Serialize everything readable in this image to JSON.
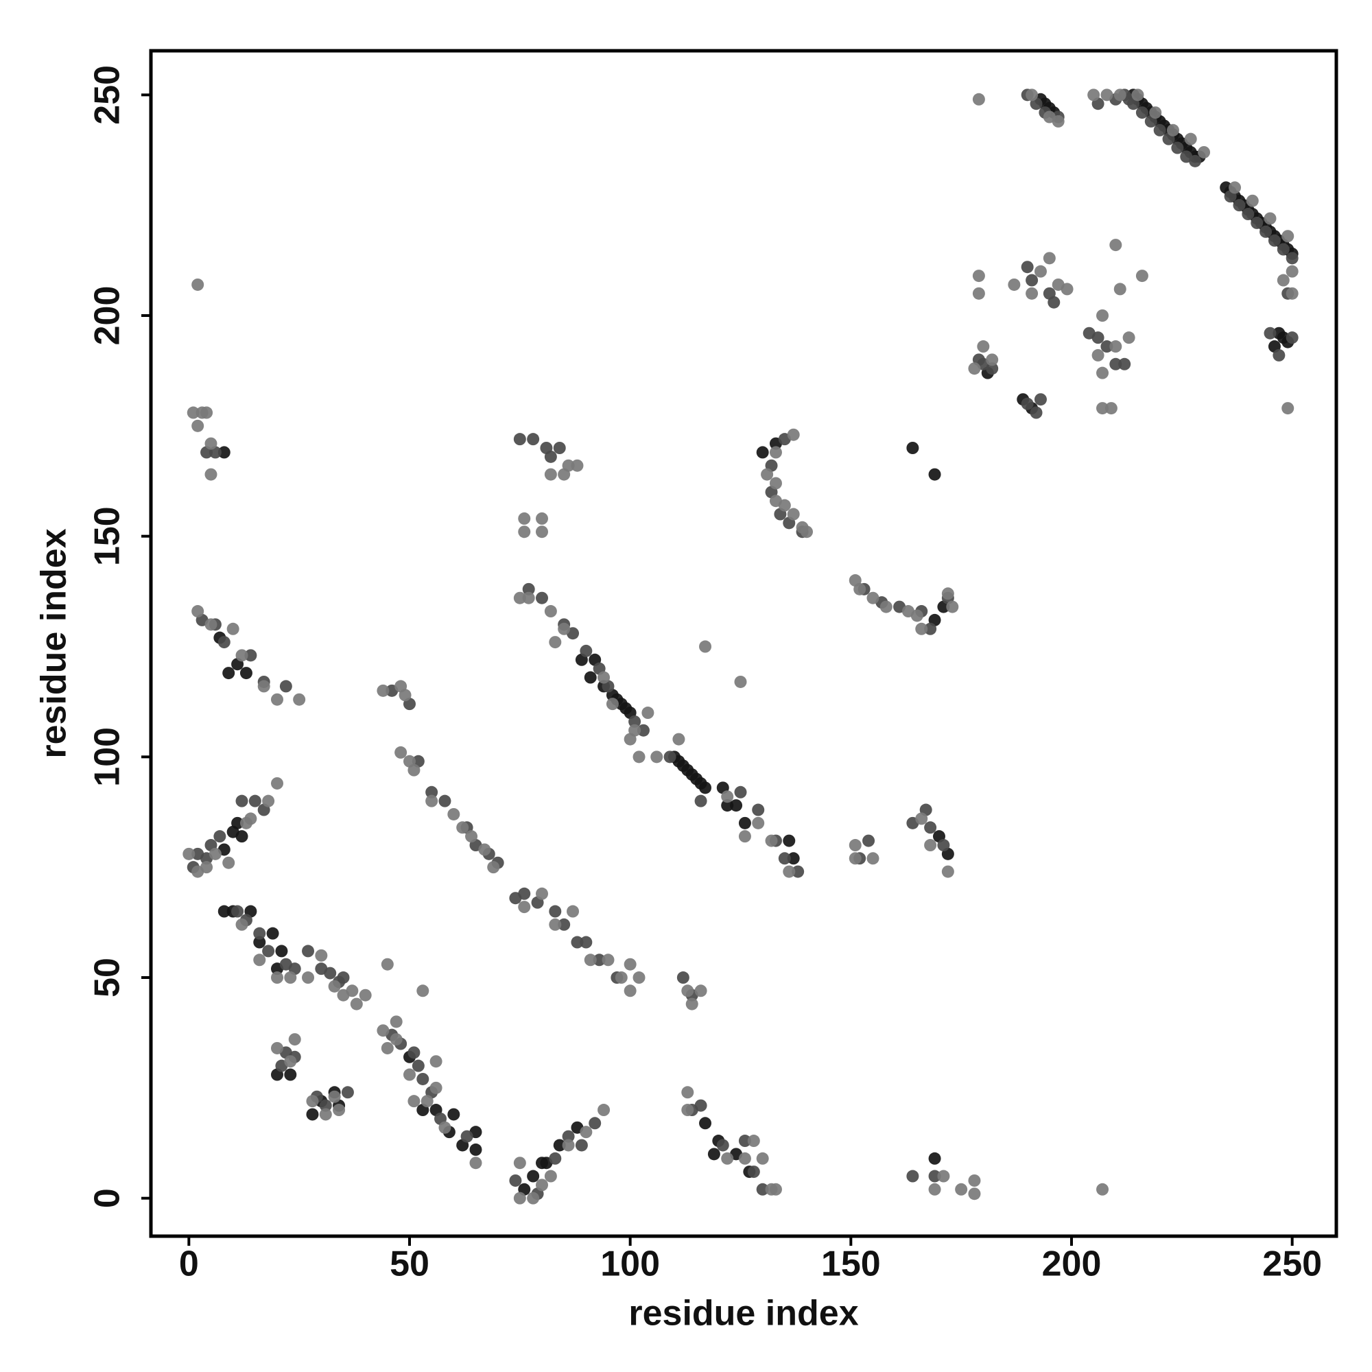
{
  "chart_data": {
    "type": "scatter",
    "x_label": "residue index",
    "y_label": "residue index",
    "xlim": [
      -8.6,
      260
    ],
    "ylim": [
      -8.6,
      260
    ],
    "xticks": [
      0,
      50,
      100,
      150,
      200,
      250
    ],
    "yticks": [
      0,
      50,
      100,
      150,
      200,
      250
    ],
    "grid": false,
    "series": [
      {
        "color": "#151515",
        "x": [
          214,
          215,
          216,
          217,
          218,
          219,
          220,
          221,
          222,
          223,
          224,
          225,
          226,
          227,
          228,
          229,
          235,
          236,
          237,
          238,
          239,
          240,
          241,
          242,
          243,
          244,
          245,
          246,
          247,
          248,
          249,
          250,
          193,
          194,
          195,
          196,
          181,
          189,
          191,
          247,
          248,
          249,
          246,
          8,
          164,
          169,
          9,
          11,
          13,
          7,
          92,
          89,
          91,
          94,
          96,
          97,
          98,
          99,
          100,
          110,
          111,
          112,
          113,
          114,
          115,
          116,
          117,
          121,
          122,
          124,
          126,
          136,
          137,
          172,
          170,
          171,
          169,
          133,
          130,
          10,
          11,
          8,
          12,
          8,
          10,
          14,
          21,
          19,
          20,
          16,
          28,
          30,
          33,
          34,
          53,
          56,
          60,
          59,
          65,
          65,
          62,
          78,
          80,
          84,
          81,
          88,
          76,
          117,
          120,
          119,
          124,
          127,
          169,
          50,
          20,
          23
        ],
        "values": [
          250,
          249,
          248,
          247,
          246,
          245,
          244,
          243,
          242,
          241,
          240,
          239,
          238,
          237,
          236,
          236,
          229,
          228,
          227,
          226,
          225,
          224,
          223,
          222,
          221,
          220,
          219,
          218,
          217,
          216,
          215,
          214,
          249,
          248,
          247,
          246,
          187,
          181,
          179,
          196,
          195,
          194,
          193,
          169,
          170,
          164,
          119,
          121,
          119,
          127,
          122,
          122,
          118,
          116,
          114,
          113,
          112,
          111,
          110,
          100,
          99,
          98,
          97,
          96,
          95,
          94,
          93,
          93,
          89,
          89,
          85,
          81,
          77,
          78,
          82,
          134,
          131,
          171,
          169,
          83,
          85,
          79,
          82,
          65,
          65,
          65,
          56,
          60,
          52,
          58,
          19,
          22,
          24,
          21,
          20,
          20,
          19,
          15,
          15,
          11,
          12,
          5,
          8,
          12,
          8,
          16,
          2,
          17,
          13,
          10,
          10,
          6,
          9,
          32,
          28,
          28
        ]
      },
      {
        "color": "#4a4a4a",
        "x": [
          212,
          213,
          214,
          216,
          218,
          220,
          222,
          224,
          226,
          228,
          236,
          238,
          240,
          242,
          244,
          246,
          248,
          250,
          190,
          192,
          194,
          197,
          206,
          210,
          179,
          180,
          182,
          190,
          192,
          193,
          190,
          191,
          195,
          196,
          204,
          206,
          208,
          210,
          212,
          245,
          247,
          250,
          249,
          4,
          6,
          3,
          6,
          8,
          14,
          17,
          22,
          75,
          78,
          81,
          82,
          84,
          77,
          80,
          85,
          87,
          90,
          93,
          95,
          101,
          103,
          109,
          116,
          125,
          129,
          133,
          138,
          135,
          132,
          134,
          136,
          139,
          135,
          132,
          153,
          157,
          161,
          166,
          168,
          172,
          164,
          167,
          168,
          171,
          46,
          50,
          52,
          55,
          58,
          63,
          65,
          68,
          70,
          1,
          2,
          4,
          5,
          7,
          12,
          15,
          17,
          11,
          13,
          16,
          18,
          22,
          24,
          27,
          30,
          32,
          34,
          35,
          22,
          24,
          21,
          29,
          31,
          36,
          46,
          48,
          51,
          52,
          53,
          55,
          57,
          63,
          74,
          76,
          79,
          83,
          85,
          88,
          90,
          93,
          97,
          112,
          114,
          74,
          79,
          83,
          86,
          89,
          92,
          114,
          116,
          121,
          126,
          128,
          130,
          169,
          164,
          152,
          154
        ],
        "values": [
          250,
          249,
          248,
          246,
          244,
          242,
          240,
          238,
          236,
          235,
          227,
          225,
          223,
          221,
          219,
          217,
          215,
          213,
          250,
          248,
          246,
          245,
          248,
          249,
          190,
          189,
          188,
          180,
          178,
          181,
          211,
          208,
          205,
          203,
          196,
          195,
          193,
          189,
          189,
          196,
          191,
          195,
          205,
          169,
          169,
          131,
          130,
          126,
          123,
          117,
          116,
          172,
          172,
          170,
          168,
          170,
          138,
          136,
          130,
          128,
          124,
          120,
          116,
          108,
          106,
          100,
          90,
          92,
          88,
          81,
          74,
          77,
          160,
          155,
          153,
          151,
          172,
          166,
          138,
          135,
          134,
          133,
          129,
          136,
          85,
          88,
          84,
          80,
          115,
          112,
          99,
          92,
          90,
          84,
          80,
          78,
          76,
          75,
          78,
          77,
          80,
          82,
          90,
          90,
          88,
          65,
          63,
          60,
          56,
          53,
          52,
          56,
          52,
          51,
          49,
          50,
          33,
          32,
          30,
          23,
          21,
          24,
          37,
          35,
          33,
          30,
          27,
          24,
          18,
          14,
          68,
          69,
          67,
          65,
          62,
          58,
          58,
          54,
          50,
          50,
          46,
          4,
          1,
          9,
          14,
          12,
          17,
          20,
          21,
          12,
          13,
          6,
          2,
          5,
          5,
          77,
          81
        ]
      },
      {
        "color": "#7a7a7a",
        "x": [
          179,
          211,
          215,
          219,
          223,
          227,
          230,
          237,
          241,
          245,
          249,
          191,
          195,
          197,
          205,
          208,
          179,
          179,
          180,
          178,
          182,
          187,
          191,
          193,
          195,
          197,
          199,
          207,
          206,
          207,
          210,
          207,
          209,
          213,
          210,
          211,
          216,
          249,
          248,
          250,
          250,
          2,
          1,
          3,
          4,
          2,
          5,
          5,
          2,
          5,
          10,
          12,
          17,
          20,
          25,
          20,
          117,
          125,
          76,
          76,
          80,
          80,
          82,
          86,
          85,
          88,
          75,
          77,
          82,
          83,
          85,
          94,
          96,
          101,
          104,
          100,
          102,
          106,
          111,
          122,
          126,
          129,
          132,
          136,
          133,
          133,
          135,
          137,
          139,
          140,
          137,
          131,
          133,
          151,
          152,
          155,
          158,
          163,
          165,
          166,
          172,
          173,
          151,
          151,
          155,
          166,
          168,
          172,
          44,
          48,
          49,
          48,
          50,
          51,
          55,
          60,
          62,
          64,
          67,
          69,
          0,
          2,
          4,
          6,
          9,
          13,
          14,
          18,
          12,
          16,
          20,
          23,
          27,
          30,
          33,
          35,
          37,
          38,
          40,
          45,
          53,
          20,
          24,
          23,
          28,
          31,
          33,
          34,
          44,
          45,
          47,
          47,
          50,
          51,
          54,
          56,
          56,
          58,
          65,
          75,
          75,
          78,
          80,
          82,
          86,
          90,
          94,
          76,
          80,
          83,
          87,
          91,
          95,
          98,
          100,
          102,
          100,
          113,
          114,
          116,
          113,
          113,
          122,
          126,
          128,
          130,
          132,
          133,
          169,
          171,
          175,
          178,
          178,
          207
        ],
        "values": [
          249,
          250,
          250,
          246,
          242,
          240,
          237,
          229,
          226,
          222,
          218,
          250,
          245,
          244,
          250,
          250,
          209,
          205,
          193,
          188,
          190,
          207,
          205,
          210,
          213,
          207,
          206,
          200,
          191,
          187,
          193,
          179,
          179,
          195,
          216,
          206,
          209,
          179,
          208,
          205,
          210,
          207,
          178,
          178,
          178,
          175,
          171,
          164,
          133,
          130,
          129,
          123,
          116,
          113,
          113,
          94,
          125,
          117,
          154,
          151,
          154,
          151,
          164,
          166,
          164,
          166,
          136,
          136,
          133,
          126,
          129,
          118,
          112,
          106,
          110,
          104,
          100,
          100,
          104,
          91,
          82,
          85,
          81,
          74,
          162,
          158,
          157,
          155,
          152,
          151,
          173,
          164,
          169,
          140,
          138,
          136,
          134,
          133,
          132,
          129,
          137,
          134,
          80,
          77,
          77,
          86,
          80,
          74,
          115,
          116,
          114,
          101,
          99,
          97,
          90,
          87,
          84,
          82,
          79,
          75,
          78,
          74,
          75,
          78,
          76,
          85,
          86,
          90,
          62,
          54,
          50,
          50,
          50,
          55,
          48,
          46,
          47,
          44,
          46,
          53,
          47,
          34,
          36,
          31,
          22,
          19,
          23,
          20,
          38,
          34,
          40,
          36,
          28,
          22,
          22,
          31,
          25,
          16,
          8,
          0,
          8,
          0,
          3,
          5,
          12,
          15,
          20,
          66,
          69,
          62,
          65,
          54,
          54,
          50,
          47,
          50,
          53,
          47,
          44,
          47,
          20,
          24,
          9,
          9,
          13,
          9,
          2,
          2,
          2,
          5,
          2,
          1,
          4,
          2
        ]
      }
    ]
  }
}
